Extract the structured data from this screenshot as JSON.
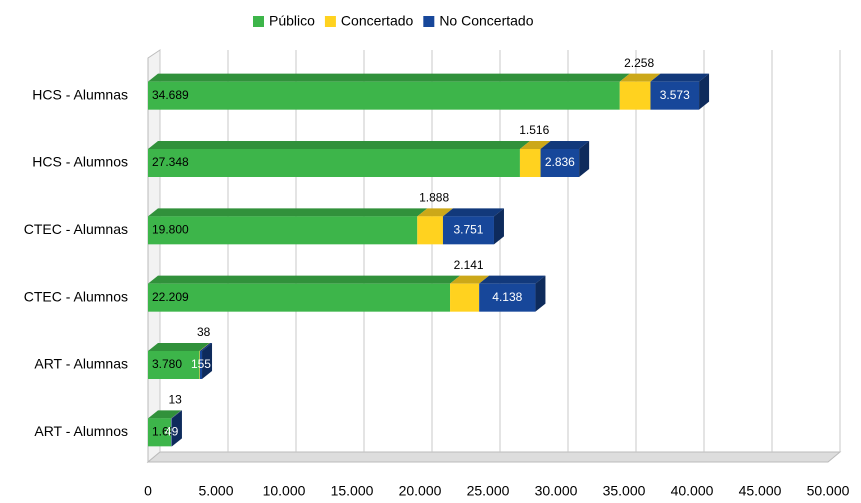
{
  "chart_data": {
    "type": "bar",
    "orientation": "horizontal",
    "stacked": true,
    "categories": [
      "HCS - Alumnas",
      "HCS - Alumnos",
      "CTEC - Alumnas",
      "CTEC - Alumnos",
      "ART - Alumnas",
      "ART - Alumnos"
    ],
    "series": [
      {
        "name": "Público",
        "color": "#3db54a",
        "values": [
          34689,
          27348,
          19800,
          22209,
          3780,
          1699
        ],
        "value_labels": [
          "34.689",
          "27.348",
          "19.800",
          "22.209",
          "3.780",
          "1.699"
        ]
      },
      {
        "name": "Concertado",
        "color": "#ffd21f",
        "values": [
          2258,
          1516,
          1888,
          2141,
          38,
          13
        ],
        "value_labels": [
          "2.258",
          "1.516",
          "1.888",
          "2.141",
          "38",
          "13"
        ]
      },
      {
        "name": "No Concertado",
        "color": "#17479a",
        "values": [
          3573,
          2836,
          3751,
          4138,
          155,
          49
        ],
        "value_labels": [
          "3.573",
          "2.836",
          "3.751",
          "4.138",
          "155",
          "49"
        ]
      }
    ],
    "xlim": [
      0,
      50000
    ],
    "xticks": [
      0,
      {
        "value": 5000,
        "label": "5.000"
      },
      {
        "value": 10000,
        "label": "10.000"
      },
      {
        "value": 15000,
        "label": "15.000"
      },
      {
        "value": 20000,
        "label": "20.000"
      },
      {
        "value": 25000,
        "label": "25.000"
      },
      {
        "value": 30000,
        "label": "30.000"
      },
      {
        "value": 35000,
        "label": "35.000"
      },
      {
        "value": 40000,
        "label": "40.000"
      },
      {
        "value": 45000,
        "label": "45.000"
      },
      {
        "value": 50000,
        "label": "50.000"
      }
    ],
    "grid": true,
    "legend": "top"
  }
}
